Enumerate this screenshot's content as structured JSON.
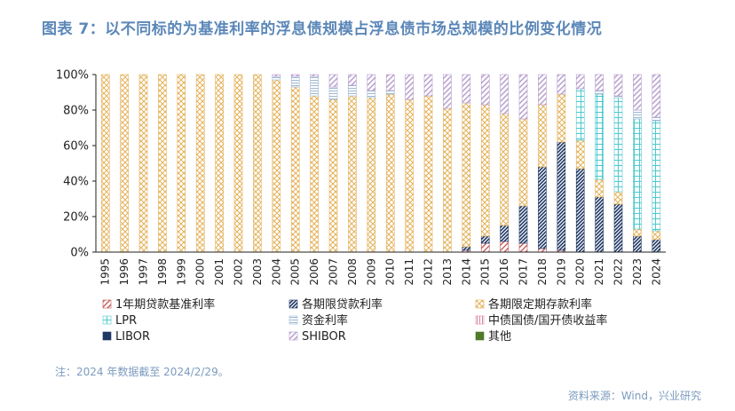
{
  "title": "图表 7：以不同标的为基准利率的浮息债规模占浮息债市场总规模的比例变化情况",
  "note": "注：2024 年数据截至 2024/2/29。",
  "source": "资料来源：Wind，兴业研究",
  "colors": {
    "title": "#5b87b8",
    "one_year_loan": "#c0504d",
    "all_term_loan": "#1f3864",
    "all_term_deposit": "#e3b25b",
    "lpr": "#4ec9cf",
    "fund_rate": "#9fb7d3",
    "cdb_bond_yield": "#d88aa2",
    "libor": "#1f3864",
    "shibor": "#b49acb",
    "other": "#4f7a28"
  },
  "chart_data": {
    "type": "bar",
    "stacked": true,
    "title": "",
    "xlabel": "",
    "ylabel": "",
    "ylim": [
      0,
      100
    ],
    "yticks": [
      "0%",
      "20%",
      "40%",
      "60%",
      "80%",
      "100%"
    ],
    "grid": false,
    "legend_position": "bottom",
    "categories": [
      "1995",
      "1996",
      "1997",
      "1998",
      "1999",
      "2000",
      "2001",
      "2002",
      "2003",
      "2004",
      "2005",
      "2006",
      "2007",
      "2008",
      "2009",
      "2010",
      "2011",
      "2012",
      "2013",
      "2014",
      "2015",
      "2016",
      "2017",
      "2018",
      "2019",
      "2020",
      "2021",
      "2022",
      "2023",
      "2024"
    ],
    "series": [
      {
        "name": "1年期贷款基准利率",
        "key": "one_year_loan",
        "values": [
          0,
          0,
          0,
          0,
          0,
          0,
          0,
          0,
          0,
          0,
          0,
          0,
          0,
          0,
          0,
          0,
          0,
          0,
          0,
          1,
          5,
          6,
          5,
          2,
          1,
          0,
          0,
          0,
          0,
          0
        ]
      },
      {
        "name": "各期限贷款利率",
        "key": "all_term_loan",
        "values": [
          0,
          0,
          0,
          0,
          0,
          0,
          0,
          0,
          0,
          0,
          0,
          0,
          0,
          0,
          0,
          0,
          0,
          0,
          0,
          2,
          4,
          9,
          21,
          46,
          61,
          47,
          31,
          27,
          9,
          7
        ]
      },
      {
        "name": "各期限定期存款利率",
        "key": "all_term_deposit",
        "values": [
          100,
          100,
          100,
          100,
          100,
          100,
          100,
          100,
          100,
          97,
          93,
          88,
          86,
          88,
          87,
          89,
          86,
          88,
          81,
          81,
          74,
          63,
          49,
          35,
          27,
          16,
          10,
          7,
          4,
          5
        ]
      },
      {
        "name": "LPR",
        "key": "lpr",
        "values": [
          0,
          0,
          0,
          0,
          0,
          0,
          0,
          0,
          0,
          0,
          0,
          0,
          0,
          0,
          0,
          0,
          0,
          0,
          0,
          0,
          0,
          0,
          0,
          0,
          0,
          29,
          48,
          53,
          62,
          62
        ]
      },
      {
        "name": "资金利率",
        "key": "fund_rate",
        "values": [
          0,
          0,
          0,
          0,
          0,
          0,
          0,
          0,
          0,
          2,
          6,
          11,
          7,
          6,
          4,
          2,
          0,
          0,
          0,
          0,
          0,
          0,
          0,
          0,
          0,
          0,
          2,
          1,
          5,
          2
        ]
      },
      {
        "name": "中债国债/国开债收益率",
        "key": "cdb_bond_yield",
        "values": [
          0,
          0,
          0,
          0,
          0,
          0,
          0,
          0,
          0,
          0,
          0,
          0,
          0,
          0,
          0,
          0,
          0,
          0,
          0,
          0,
          0,
          0,
          0,
          0,
          0,
          0,
          0,
          0,
          0,
          0
        ]
      },
      {
        "name": "LIBOR",
        "key": "libor",
        "values": [
          0,
          0,
          0,
          0,
          0,
          0,
          0,
          0,
          0,
          0,
          0,
          0,
          0,
          0,
          0,
          0,
          0,
          0,
          0,
          0,
          0,
          0,
          0,
          0,
          0,
          0,
          0,
          0,
          0,
          0
        ]
      },
      {
        "name": "SHIBOR",
        "key": "shibor",
        "values": [
          0,
          0,
          0,
          0,
          0,
          0,
          0,
          0,
          0,
          1,
          1,
          1,
          7,
          6,
          9,
          9,
          14,
          12,
          19,
          16,
          17,
          22,
          25,
          17,
          11,
          8,
          9,
          12,
          20,
          24
        ]
      },
      {
        "name": "其他",
        "key": "other",
        "values": [
          0,
          0,
          0,
          0,
          0,
          0,
          0,
          0,
          0,
          0,
          0,
          0,
          0,
          0,
          0,
          0,
          0,
          0,
          0,
          0,
          0,
          0,
          0,
          0,
          0,
          0,
          0,
          0,
          0,
          0
        ]
      }
    ]
  }
}
